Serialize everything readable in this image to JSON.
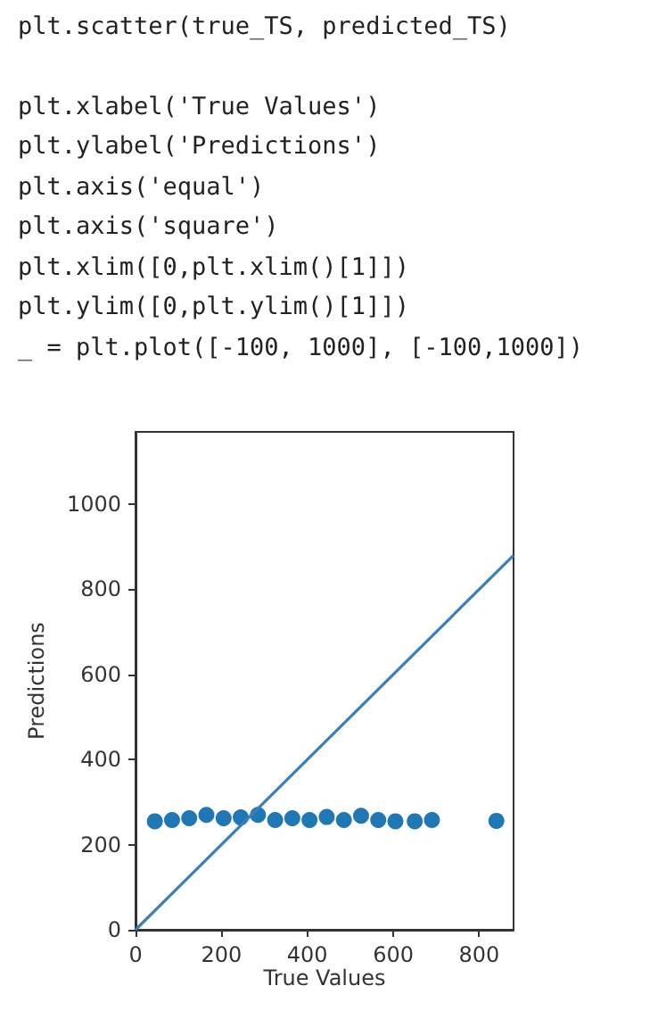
{
  "chart_data": {
    "type": "scatter",
    "annotations": [
      "plt.scatter(true_TS, predicted_TS)",
      "plt.xlabel('True Values')",
      "plt.ylabel('Predictions')",
      "plt.axis('equal')",
      "plt.axis('square')",
      "plt.xlim([0,plt.xlim()[1]])",
      "plt.ylim([0,plt.ylim()[1]])",
      "_ = plt.plot([-100, 1000], [-100,1000])"
    ],
    "xlabel": "True Values",
    "ylabel": "Predictions",
    "xlim": [
      0,
      880
    ],
    "ylim": [
      0,
      1170
    ],
    "xticks": [
      0,
      200,
      400,
      600,
      800
    ],
    "yticks": [
      0,
      200,
      400,
      600,
      800,
      {
        "value": 1000,
        "label": "1000"
      }
    ],
    "grid": false,
    "marker": "circle",
    "series": [
      {
        "color": "#1f77b4",
        "x": [
          45,
          85,
          125,
          165,
          205,
          245,
          285,
          325,
          365,
          405,
          445,
          485,
          525,
          565,
          605,
          650,
          690,
          840
        ],
        "values": [
          255,
          258,
          262,
          270,
          262,
          264,
          270,
          258,
          262,
          258,
          265,
          258,
          268,
          258,
          255,
          255,
          258,
          256
        ]
      },
      {
        "type": "line",
        "color": "#3a7fb8",
        "x": [
          0,
          880
        ],
        "values": [
          0,
          880
        ],
        "marker": "none",
        "line_style": "solid"
      }
    ]
  }
}
